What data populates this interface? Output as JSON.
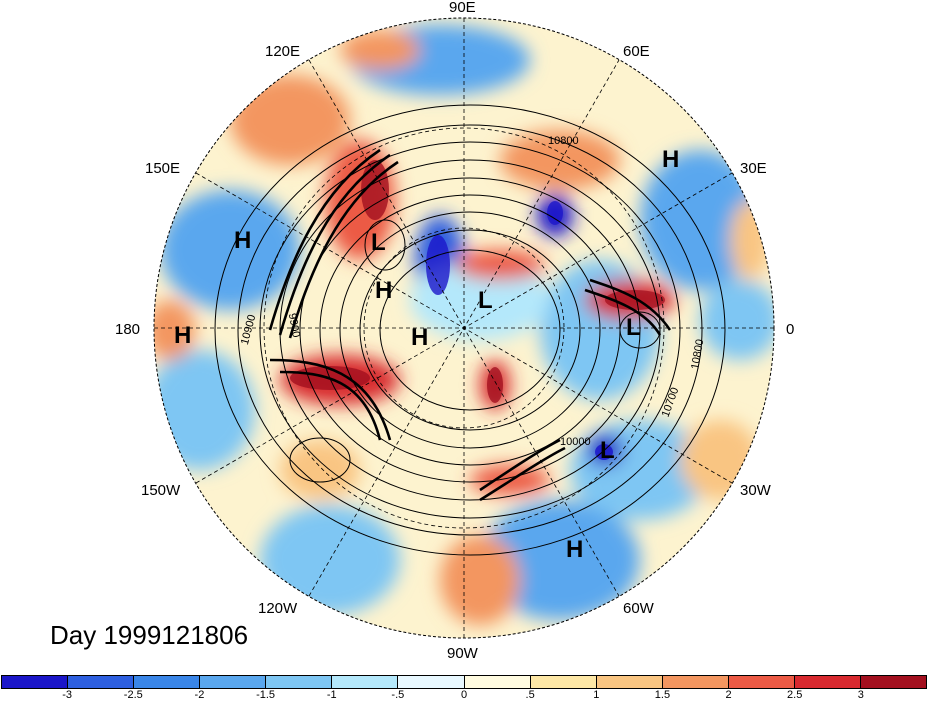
{
  "title": "Day 1999121806",
  "longitude_labels": [
    "90E",
    "60E",
    "30E",
    "0",
    "30W",
    "60W",
    "90W",
    "120W",
    "150W",
    "180",
    "150E",
    "120E"
  ],
  "pressure_centers": [
    "H",
    "H",
    "H",
    "L",
    "H",
    "L",
    "H",
    "L",
    "L",
    "H"
  ],
  "contour_labels": [
    "10800",
    "10900",
    "9900",
    "10800",
    "10700",
    "10000"
  ],
  "colorbar": {
    "ticks": [
      "-3",
      "-2.5",
      "-2",
      "-1.5",
      "-1",
      "-.5",
      "0",
      ".5",
      "1",
      "1.5",
      "2",
      "2.5",
      "3"
    ],
    "colors": [
      "#1b16c9",
      "#2d5fe0",
      "#3a86e8",
      "#5aa7ee",
      "#7ec6f3",
      "#b4e8fb",
      "#e8f8ff",
      "#fffbe0",
      "#fde7a6",
      "#f9c582",
      "#f39660",
      "#ec5a45",
      "#d8292f",
      "#a3101f"
    ]
  },
  "colors": {
    "background": "#ffffff",
    "contour": "#000000"
  }
}
